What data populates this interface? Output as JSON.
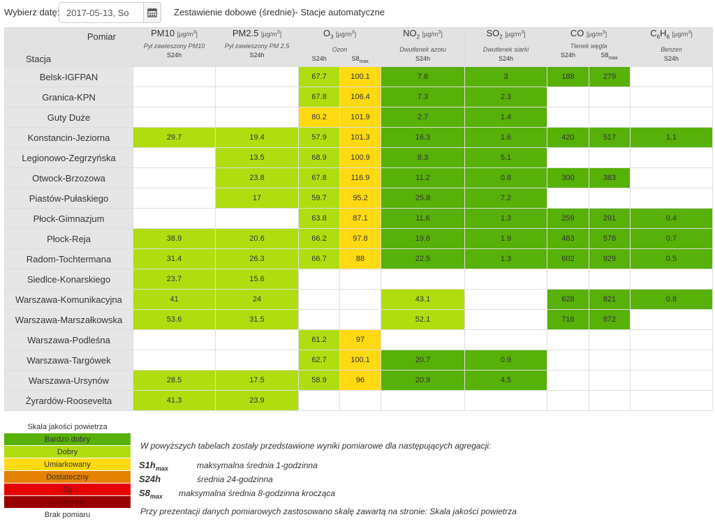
{
  "topbar": {
    "date_label": "Wybierz datę:",
    "date_value": "2017-05-13, So",
    "title": "Zestawienie dobowe (średnie)- Stacje automatyczne",
    "calendar_icon": "calendar-icon"
  },
  "header": {
    "pomiar_label": "Pomiar",
    "stacja_label": "Stacja",
    "params": [
      {
        "key": "pm10",
        "name": "PM10",
        "sub": "",
        "unit_pre": "[µg/m",
        "unit_sup": "3",
        "unit_post": "]",
        "desc": "Pył zawieszony PM10",
        "aggs": [
          "S24h"
        ]
      },
      {
        "key": "pm25",
        "name": "PM2.5",
        "sub": "",
        "unit_pre": "[µg/m",
        "unit_sup": "3",
        "unit_post": "]",
        "desc": "Pył zawieszony PM 2.5",
        "aggs": [
          "S24h"
        ]
      },
      {
        "key": "o3",
        "name": "O",
        "sub": "3",
        "unit_pre": "[µg/m",
        "unit_sup": "3",
        "unit_post": "]",
        "desc": "Ozon",
        "aggs": [
          "S24h",
          "S8max"
        ]
      },
      {
        "key": "no2",
        "name": "NO",
        "sub": "2",
        "unit_pre": "[µg/m",
        "unit_sup": "3",
        "unit_post": "]",
        "desc": "Dwutlenek azotu",
        "aggs": [
          "S24h"
        ]
      },
      {
        "key": "so2",
        "name": "SO",
        "sub": "2",
        "unit_pre": "[µg/m",
        "unit_sup": "3",
        "unit_post": "]",
        "desc": "Dwutlenek siarki",
        "aggs": [
          "S24h"
        ]
      },
      {
        "key": "co",
        "name": "CO",
        "sub": "",
        "unit_pre": "[µg/m",
        "unit_sup": "3",
        "unit_post": "]",
        "desc": "Tlenek węgla",
        "aggs": [
          "S24h",
          "S8max"
        ]
      },
      {
        "key": "c6h6",
        "name": "C6H6",
        "sub": "",
        "unit_pre": "[µg/m",
        "unit_sup": "3",
        "unit_post": "]",
        "desc": "Benzen",
        "aggs": [
          "S24h"
        ]
      }
    ]
  },
  "colors": {
    "bd": "#57b108",
    "d": "#b0dd10",
    "u": "#ffd911",
    "dost": "#e58100",
    "zly": "#e50000",
    "bz": "#990000"
  },
  "rows": [
    {
      "station": "Belsk-IGFPAN",
      "cells": [
        [
          "",
          ""
        ],
        [
          "",
          ""
        ],
        [
          "67.7",
          "d"
        ],
        [
          "100.1",
          "u"
        ],
        [
          "7.8",
          "bd"
        ],
        [
          "3",
          "bd"
        ],
        [
          "188",
          "bd"
        ],
        [
          "279",
          "bd"
        ],
        [
          "",
          ""
        ]
      ]
    },
    {
      "station": "Granica-KPN",
      "cells": [
        [
          "",
          ""
        ],
        [
          "",
          ""
        ],
        [
          "67.8",
          "d"
        ],
        [
          "106.4",
          "u"
        ],
        [
          "7.3",
          "bd"
        ],
        [
          "2.3",
          "bd"
        ],
        [
          "",
          ""
        ],
        [
          "",
          ""
        ],
        [
          "",
          ""
        ]
      ]
    },
    {
      "station": "Guty Duże",
      "cells": [
        [
          "",
          ""
        ],
        [
          "",
          ""
        ],
        [
          "80.2",
          "u"
        ],
        [
          "101.9",
          "u"
        ],
        [
          "2.7",
          "bd"
        ],
        [
          "1.4",
          "bd"
        ],
        [
          "",
          ""
        ],
        [
          "",
          ""
        ],
        [
          "",
          ""
        ]
      ]
    },
    {
      "station": "Konstancin-Jeziorna",
      "cells": [
        [
          "29.7",
          "d"
        ],
        [
          "19.4",
          "d"
        ],
        [
          "57.9",
          "d"
        ],
        [
          "101.3",
          "u"
        ],
        [
          "16.3",
          "bd"
        ],
        [
          "1.6",
          "bd"
        ],
        [
          "420",
          "bd"
        ],
        [
          "517",
          "bd"
        ],
        [
          "1.1",
          "bd"
        ]
      ]
    },
    {
      "station": "Legionowo-Zegrzyńska",
      "cells": [
        [
          "",
          ""
        ],
        [
          "13.5",
          "d"
        ],
        [
          "68.9",
          "d"
        ],
        [
          "100.9",
          "u"
        ],
        [
          "8.3",
          "bd"
        ],
        [
          "5.1",
          "bd"
        ],
        [
          "",
          ""
        ],
        [
          "",
          ""
        ],
        [
          "",
          ""
        ]
      ]
    },
    {
      "station": "Otwock-Brzozowa",
      "cells": [
        [
          "",
          ""
        ],
        [
          "23.8",
          "d"
        ],
        [
          "67.8",
          "d"
        ],
        [
          "116.9",
          "u"
        ],
        [
          "11.2",
          "bd"
        ],
        [
          "0.8",
          "bd"
        ],
        [
          "300",
          "bd"
        ],
        [
          "383",
          "bd"
        ],
        [
          "",
          ""
        ]
      ]
    },
    {
      "station": "Piastów-Pułaskiego",
      "cells": [
        [
          "",
          ""
        ],
        [
          "17",
          "d"
        ],
        [
          "59.7",
          "d"
        ],
        [
          "95.2",
          "u"
        ],
        [
          "25.8",
          "bd"
        ],
        [
          "7.2",
          "bd"
        ],
        [
          "",
          ""
        ],
        [
          "",
          ""
        ],
        [
          "",
          ""
        ]
      ]
    },
    {
      "station": "Płock-Gimnazjum",
      "cells": [
        [
          "",
          ""
        ],
        [
          "",
          ""
        ],
        [
          "63.8",
          "d"
        ],
        [
          "87.1",
          "u"
        ],
        [
          "11.6",
          "bd"
        ],
        [
          "1.3",
          "bd"
        ],
        [
          "259",
          "bd"
        ],
        [
          "291",
          "bd"
        ],
        [
          "0.4",
          "bd"
        ]
      ]
    },
    {
      "station": "Płock-Reja",
      "cells": [
        [
          "38.9",
          "d"
        ],
        [
          "20.6",
          "d"
        ],
        [
          "66.2",
          "d"
        ],
        [
          "97.8",
          "u"
        ],
        [
          "19.6",
          "bd"
        ],
        [
          "1.9",
          "bd"
        ],
        [
          "483",
          "bd"
        ],
        [
          "578",
          "bd"
        ],
        [
          "0.7",
          "bd"
        ]
      ]
    },
    {
      "station": "Radom-Tochtermana",
      "cells": [
        [
          "31.4",
          "d"
        ],
        [
          "26.3",
          "d"
        ],
        [
          "66.7",
          "d"
        ],
        [
          "88",
          "u"
        ],
        [
          "22.5",
          "bd"
        ],
        [
          "1.3",
          "bd"
        ],
        [
          "602",
          "bd"
        ],
        [
          "929",
          "bd"
        ],
        [
          "0.5",
          "bd"
        ]
      ]
    },
    {
      "station": "Siedlce-Konarskiego",
      "cells": [
        [
          "23.7",
          "d"
        ],
        [
          "15.6",
          "d"
        ],
        [
          "",
          ""
        ],
        [
          "",
          ""
        ],
        [
          "",
          ""
        ],
        [
          "",
          ""
        ],
        [
          "",
          ""
        ],
        [
          "",
          ""
        ],
        [
          "",
          ""
        ]
      ]
    },
    {
      "station": "Warszawa-Komunikacyjna",
      "cells": [
        [
          "41",
          "d"
        ],
        [
          "24",
          "d"
        ],
        [
          "",
          ""
        ],
        [
          "",
          ""
        ],
        [
          "43.1",
          "d"
        ],
        [
          "",
          ""
        ],
        [
          "628",
          "bd"
        ],
        [
          "821",
          "bd"
        ],
        [
          "0.8",
          "bd"
        ]
      ]
    },
    {
      "station": "Warszawa-Marszałkowska",
      "cells": [
        [
          "53.6",
          "d"
        ],
        [
          "31.5",
          "d"
        ],
        [
          "",
          ""
        ],
        [
          "",
          ""
        ],
        [
          "52.1",
          "d"
        ],
        [
          "",
          ""
        ],
        [
          "716",
          "bd"
        ],
        [
          "872",
          "bd"
        ],
        [
          "",
          ""
        ]
      ]
    },
    {
      "station": "Warszawa-Podleśna",
      "cells": [
        [
          "",
          ""
        ],
        [
          "",
          ""
        ],
        [
          "61.2",
          "d"
        ],
        [
          "97",
          "u"
        ],
        [
          "",
          ""
        ],
        [
          "",
          ""
        ],
        [
          "",
          ""
        ],
        [
          "",
          ""
        ],
        [
          "",
          ""
        ]
      ]
    },
    {
      "station": "Warszawa-Targówek",
      "cells": [
        [
          "",
          ""
        ],
        [
          "",
          ""
        ],
        [
          "62.7",
          "d"
        ],
        [
          "100.1",
          "u"
        ],
        [
          "20.7",
          "bd"
        ],
        [
          "0.9",
          "bd"
        ],
        [
          "",
          ""
        ],
        [
          "",
          ""
        ],
        [
          "",
          ""
        ]
      ]
    },
    {
      "station": "Warszawa-Ursynów",
      "cells": [
        [
          "28.5",
          "d"
        ],
        [
          "17.5",
          "d"
        ],
        [
          "58.9",
          "d"
        ],
        [
          "96",
          "u"
        ],
        [
          "20.9",
          "bd"
        ],
        [
          "4.5",
          "bd"
        ],
        [
          "",
          ""
        ],
        [
          "",
          ""
        ],
        [
          "",
          ""
        ]
      ]
    },
    {
      "station": "Żyrardów-Roosevelta",
      "cells": [
        [
          "41.3",
          "d"
        ],
        [
          "23.9",
          "d"
        ],
        [
          "",
          ""
        ],
        [
          "",
          ""
        ],
        [
          "",
          ""
        ],
        [
          "",
          ""
        ],
        [
          "",
          ""
        ],
        [
          "",
          ""
        ],
        [
          "",
          ""
        ]
      ]
    }
  ],
  "legend": {
    "title": "Skala jakości powietrza",
    "items": [
      {
        "label": "Bardzo dobry",
        "cls": "c-bd"
      },
      {
        "label": "Dobry",
        "cls": "c-d"
      },
      {
        "label": "Umiarkowany",
        "cls": "c-u"
      },
      {
        "label": "Dostateczny",
        "cls": "c-dost"
      },
      {
        "label": "Zły",
        "cls": "c-zly"
      },
      {
        "label": "Bardzo zły",
        "cls": "c-bz"
      },
      {
        "label": "Brak pomiaru",
        "cls": "plain"
      }
    ]
  },
  "notes": {
    "intro": "W powyższych tabelach zostały przedstawione wyniki pomiarowe dla następujących agregacji:",
    "aggs": [
      {
        "code": "S1h",
        "code_sub": "max",
        "desc": "maksymalna średnia 1-godzinna"
      },
      {
        "code": "S24h",
        "code_sub": "",
        "desc": "średnia 24-godzinna"
      },
      {
        "code": "S8",
        "code_sub": "max",
        "desc": "maksymalna średnia 8-godzinna krocząca"
      }
    ],
    "footer": "Przy prezentacji danych pomiarowych zastosowano skalę zawartą na stronie: Skala jakości powietrza"
  }
}
